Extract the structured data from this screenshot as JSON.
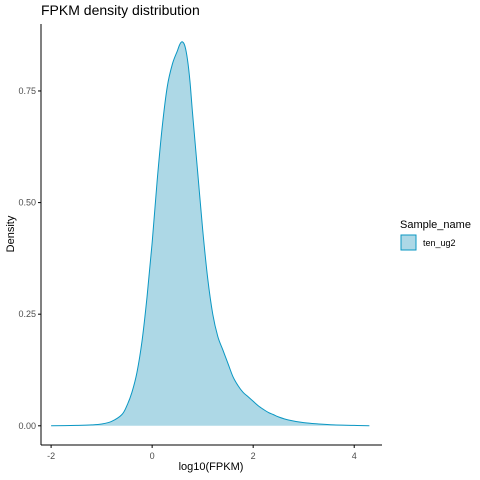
{
  "colors": {
    "fill": "#add8e6",
    "line": "#0a97c3",
    "axis": "#000000",
    "tick_text": "#4d4d4d"
  },
  "chart_data": {
    "type": "area",
    "title": "FPKM density distribution",
    "xlabel": "log10(FPKM)",
    "ylabel": "Density",
    "xlim": [
      -2.2,
      4.55
    ],
    "ylim": [
      -0.043,
      0.9
    ],
    "x_ticks": [
      -2,
      0,
      2,
      4
    ],
    "x_tick_labels": [
      "-2",
      "0",
      "2",
      "4"
    ],
    "y_ticks": [
      0,
      0.25,
      0.5,
      0.75
    ],
    "y_tick_labels": [
      "0.00",
      "0.25",
      "0.50",
      "0.75"
    ],
    "grid": false,
    "legend": {
      "title": "Sample_name",
      "position": "right",
      "entries": [
        "ten_ug2"
      ]
    },
    "series": [
      {
        "name": "ten_ug2",
        "x": [
          -2.0,
          -1.5,
          -1.2,
          -1.0,
          -0.8,
          -0.6,
          -0.5,
          -0.4,
          -0.3,
          -0.2,
          -0.1,
          0.0,
          0.1,
          0.2,
          0.3,
          0.4,
          0.5,
          0.55,
          0.6,
          0.65,
          0.7,
          0.75,
          0.8,
          0.9,
          1.0,
          1.1,
          1.2,
          1.3,
          1.4,
          1.5,
          1.6,
          1.7,
          1.8,
          1.9,
          2.0,
          2.1,
          2.2,
          2.3,
          2.4,
          2.5,
          2.7,
          3.0,
          3.3,
          3.6,
          4.0,
          4.3
        ],
        "y": [
          0.0,
          0.001,
          0.002,
          0.004,
          0.01,
          0.025,
          0.045,
          0.075,
          0.12,
          0.19,
          0.29,
          0.41,
          0.55,
          0.67,
          0.76,
          0.81,
          0.84,
          0.855,
          0.86,
          0.85,
          0.82,
          0.77,
          0.7,
          0.57,
          0.44,
          0.33,
          0.25,
          0.2,
          0.17,
          0.14,
          0.11,
          0.09,
          0.075,
          0.065,
          0.055,
          0.045,
          0.037,
          0.03,
          0.025,
          0.02,
          0.013,
          0.007,
          0.004,
          0.002,
          0.001,
          0.0
        ]
      }
    ]
  }
}
